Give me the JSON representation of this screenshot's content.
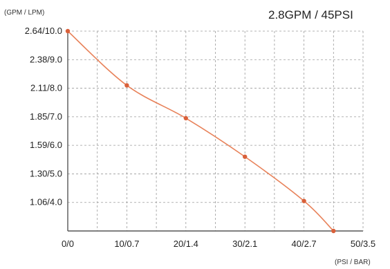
{
  "chart_data": {
    "type": "line",
    "title": "2.8GPM / 45PSI",
    "ylabel": "(GPM / LPM)",
    "xlabel": "(PSI / BAR)",
    "x_ticks": [
      "0/0",
      "10/0.7",
      "20/1.4",
      "30/2.1",
      "40/2.7",
      "50/3.5"
    ],
    "y_ticks": [
      "2.64/10.0",
      "2.38/9.0",
      "2.11/8.0",
      "1.85/7.0",
      "1.59/6.0",
      "1.30/5.0",
      "1.06/4.0"
    ],
    "xlim": [
      0,
      50
    ],
    "ylim_lpm": [
      3,
      10
    ],
    "grid": true,
    "line_color": "#e8825a",
    "marker_color": "#d9603a",
    "series": [
      {
        "points": [
          {
            "psi": 0,
            "lpm": 10.0
          },
          {
            "psi": 10,
            "lpm": 8.1
          },
          {
            "psi": 20,
            "lpm": 6.95
          },
          {
            "psi": 30,
            "lpm": 5.6
          },
          {
            "psi": 40,
            "lpm": 4.05
          },
          {
            "psi": 45,
            "lpm": 3.0
          }
        ]
      }
    ]
  }
}
